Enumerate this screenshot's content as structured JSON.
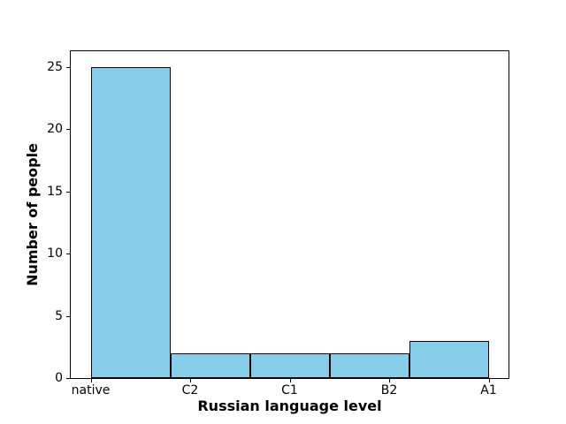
{
  "figure": {
    "background": "#ffffff"
  },
  "chart_data": {
    "type": "bar",
    "subtype": "histogram",
    "xlabel": "Russian language level",
    "ylabel": "Number of people",
    "categories": [
      "native",
      "C2",
      "C1",
      "B2",
      "A1"
    ],
    "values": [
      25,
      2,
      2,
      2,
      3
    ],
    "bin_edges": [
      0,
      0.8,
      1.6,
      2.4,
      3.2,
      4.0
    ],
    "xticks": [
      {
        "pos": 0,
        "label": "native"
      },
      {
        "pos": 1,
        "label": "C2"
      },
      {
        "pos": 2,
        "label": "C1"
      },
      {
        "pos": 3,
        "label": "B2"
      },
      {
        "pos": 4,
        "label": "A1"
      }
    ],
    "yticks": [
      0,
      5,
      10,
      15,
      20,
      25
    ],
    "xlim": [
      -0.2,
      4.2
    ],
    "ylim": [
      0,
      26.25
    ],
    "bar_color": "#87CEEB",
    "bar_edge_color": "#000000",
    "axis_color": "#000000",
    "grid": false,
    "legend": null
  }
}
